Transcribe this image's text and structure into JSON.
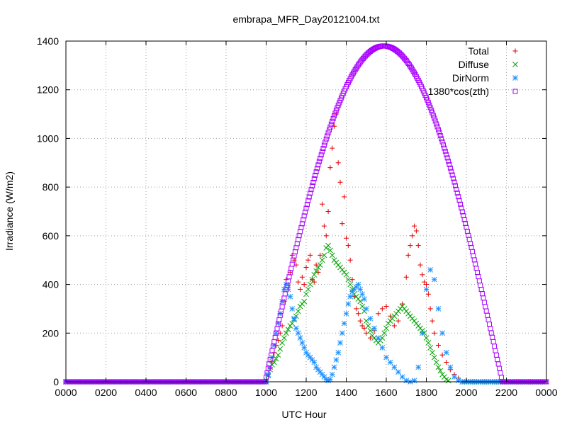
{
  "chart_data": {
    "type": "scatter",
    "title": "embrapa_MFR_Day20121004.txt",
    "xlabel": "UTC Hour",
    "ylabel": "Irradiance (W/m2)",
    "xlim": [
      0,
      24
    ],
    "ylim": [
      0,
      1400
    ],
    "x_ticks": [
      0,
      2,
      4,
      6,
      8,
      10,
      12,
      14,
      16,
      18,
      20,
      22,
      24
    ],
    "x_tick_labels": [
      "0000",
      "0200",
      "0400",
      "0600",
      "0800",
      "1000",
      "1200",
      "1400",
      "1600",
      "1800",
      "2000",
      "2200",
      "0000"
    ],
    "y_ticks": [
      0,
      200,
      400,
      600,
      800,
      1000,
      1200,
      1400
    ],
    "y_tick_labels": [
      "0",
      "200",
      "400",
      "600",
      "800",
      "1000",
      "1200",
      "1400"
    ],
    "grid": true,
    "legend_position": "top-right",
    "series": [
      {
        "name": "Total",
        "color": "#e00000",
        "marker": "plus",
        "points": [
          [
            10.0,
            5
          ],
          [
            10.1,
            30
          ],
          [
            10.2,
            55
          ],
          [
            10.3,
            85
          ],
          [
            10.4,
            120
          ],
          [
            10.5,
            150
          ],
          [
            10.6,
            170
          ],
          [
            10.7,
            200
          ],
          [
            10.8,
            230
          ],
          [
            10.9,
            330
          ],
          [
            11.0,
            420
          ],
          [
            11.1,
            395
          ],
          [
            11.2,
            450
          ],
          [
            11.3,
            520
          ],
          [
            11.4,
            500
          ],
          [
            11.5,
            480
          ],
          [
            11.6,
            410
          ],
          [
            11.7,
            380
          ],
          [
            11.8,
            430
          ],
          [
            11.9,
            400
          ],
          [
            12.0,
            470
          ],
          [
            12.1,
            500
          ],
          [
            12.2,
            520
          ],
          [
            12.3,
            420
          ],
          [
            12.4,
            410
          ],
          [
            12.5,
            480
          ],
          [
            12.6,
            450
          ],
          [
            12.7,
            520
          ],
          [
            12.8,
            730
          ],
          [
            12.9,
            640
          ],
          [
            13.0,
            600
          ],
          [
            13.1,
            700
          ],
          [
            13.2,
            880
          ],
          [
            13.3,
            960
          ],
          [
            13.4,
            1050
          ],
          [
            13.5,
            1100
          ],
          [
            13.6,
            900
          ],
          [
            13.7,
            820
          ],
          [
            13.8,
            650
          ],
          [
            13.9,
            760
          ],
          [
            14.0,
            590
          ],
          [
            14.1,
            560
          ],
          [
            14.2,
            500
          ],
          [
            14.3,
            420
          ],
          [
            14.4,
            350
          ],
          [
            14.5,
            300
          ],
          [
            14.6,
            280
          ],
          [
            14.7,
            250
          ],
          [
            14.8,
            230
          ],
          [
            14.9,
            220
          ],
          [
            15.0,
            200
          ],
          [
            15.2,
            180
          ],
          [
            15.4,
            210
          ],
          [
            15.6,
            280
          ],
          [
            15.8,
            300
          ],
          [
            16.0,
            310
          ],
          [
            16.2,
            270
          ],
          [
            16.4,
            230
          ],
          [
            16.6,
            250
          ],
          [
            16.8,
            320
          ],
          [
            17.0,
            430
          ],
          [
            17.1,
            520
          ],
          [
            17.2,
            560
          ],
          [
            17.3,
            600
          ],
          [
            17.4,
            640
          ],
          [
            17.5,
            620
          ],
          [
            17.6,
            560
          ],
          [
            17.7,
            480
          ],
          [
            17.8,
            440
          ],
          [
            17.9,
            410
          ],
          [
            18.0,
            400
          ],
          [
            18.1,
            360
          ],
          [
            18.2,
            300
          ],
          [
            18.3,
            250
          ],
          [
            18.4,
            200
          ],
          [
            18.6,
            150
          ],
          [
            18.8,
            110
          ],
          [
            19.0,
            80
          ],
          [
            19.2,
            50
          ],
          [
            19.4,
            30
          ],
          [
            19.6,
            15
          ]
        ]
      },
      {
        "name": "Diffuse",
        "color": "#00a000",
        "marker": "cross",
        "points": [
          [
            10.0,
            5
          ],
          [
            10.1,
            25
          ],
          [
            10.2,
            50
          ],
          [
            10.3,
            70
          ],
          [
            10.4,
            80
          ],
          [
            10.5,
            95
          ],
          [
            10.6,
            110
          ],
          [
            10.7,
            135
          ],
          [
            10.8,
            160
          ],
          [
            10.9,
            180
          ],
          [
            11.0,
            200
          ],
          [
            11.1,
            215
          ],
          [
            11.2,
            230
          ],
          [
            11.3,
            240
          ],
          [
            11.4,
            255
          ],
          [
            11.5,
            270
          ],
          [
            11.6,
            290
          ],
          [
            11.7,
            310
          ],
          [
            11.8,
            320
          ],
          [
            11.9,
            330
          ],
          [
            12.0,
            360
          ],
          [
            12.1,
            380
          ],
          [
            12.2,
            400
          ],
          [
            12.3,
            420
          ],
          [
            12.4,
            440
          ],
          [
            12.5,
            455
          ],
          [
            12.6,
            470
          ],
          [
            12.7,
            480
          ],
          [
            12.8,
            500
          ],
          [
            12.9,
            520
          ],
          [
            13.0,
            550
          ],
          [
            13.1,
            560
          ],
          [
            13.2,
            540
          ],
          [
            13.3,
            520
          ],
          [
            13.4,
            500
          ],
          [
            13.5,
            490
          ],
          [
            13.6,
            480
          ],
          [
            13.7,
            470
          ],
          [
            13.8,
            460
          ],
          [
            13.9,
            450
          ],
          [
            14.0,
            440
          ],
          [
            14.1,
            420
          ],
          [
            14.2,
            400
          ],
          [
            14.3,
            380
          ],
          [
            14.4,
            360
          ],
          [
            14.5,
            350
          ],
          [
            14.6,
            340
          ],
          [
            14.7,
            330
          ],
          [
            14.8,
            310
          ],
          [
            14.9,
            290
          ],
          [
            15.0,
            250
          ],
          [
            15.1,
            230
          ],
          [
            15.2,
            210
          ],
          [
            15.3,
            190
          ],
          [
            15.4,
            180
          ],
          [
            15.5,
            170
          ],
          [
            15.6,
            160
          ],
          [
            15.7,
            170
          ],
          [
            15.8,
            180
          ],
          [
            15.9,
            200
          ],
          [
            16.0,
            220
          ],
          [
            16.1,
            240
          ],
          [
            16.2,
            250
          ],
          [
            16.3,
            260
          ],
          [
            16.4,
            270
          ],
          [
            16.5,
            280
          ],
          [
            16.6,
            290
          ],
          [
            16.7,
            300
          ],
          [
            16.8,
            310
          ],
          [
            16.9,
            300
          ],
          [
            17.0,
            290
          ],
          [
            17.1,
            280
          ],
          [
            17.2,
            270
          ],
          [
            17.3,
            260
          ],
          [
            17.4,
            250
          ],
          [
            17.5,
            240
          ],
          [
            17.6,
            230
          ],
          [
            17.7,
            220
          ],
          [
            17.8,
            210
          ],
          [
            17.9,
            200
          ],
          [
            18.0,
            180
          ],
          [
            18.1,
            160
          ],
          [
            18.2,
            140
          ],
          [
            18.3,
            120
          ],
          [
            18.4,
            100
          ],
          [
            18.5,
            80
          ],
          [
            18.6,
            60
          ],
          [
            18.7,
            45
          ],
          [
            18.8,
            30
          ],
          [
            18.9,
            20
          ],
          [
            19.0,
            10
          ],
          [
            19.1,
            5
          ]
        ]
      },
      {
        "name": "DirNorm",
        "color": "#1e90ff",
        "marker": "star",
        "points": [
          [
            10.0,
            5
          ],
          [
            10.1,
            30
          ],
          [
            10.2,
            60
          ],
          [
            10.3,
            100
          ],
          [
            10.4,
            150
          ],
          [
            10.5,
            200
          ],
          [
            10.6,
            240
          ],
          [
            10.7,
            280
          ],
          [
            10.8,
            330
          ],
          [
            10.9,
            380
          ],
          [
            11.0,
            400
          ],
          [
            11.1,
            380
          ],
          [
            11.2,
            350
          ],
          [
            11.3,
            300
          ],
          [
            11.4,
            260
          ],
          [
            11.5,
            220
          ],
          [
            11.6,
            200
          ],
          [
            11.7,
            180
          ],
          [
            11.8,
            160
          ],
          [
            11.9,
            140
          ],
          [
            12.0,
            120
          ],
          [
            12.1,
            110
          ],
          [
            12.2,
            100
          ],
          [
            12.3,
            90
          ],
          [
            12.4,
            80
          ],
          [
            12.5,
            60
          ],
          [
            12.6,
            50
          ],
          [
            12.7,
            40
          ],
          [
            12.8,
            30
          ],
          [
            12.9,
            20
          ],
          [
            13.0,
            10
          ],
          [
            13.1,
            5
          ],
          [
            13.2,
            10
          ],
          [
            13.3,
            30
          ],
          [
            13.4,
            60
          ],
          [
            13.5,
            90
          ],
          [
            13.6,
            120
          ],
          [
            13.7,
            160
          ],
          [
            13.8,
            200
          ],
          [
            13.9,
            240
          ],
          [
            14.0,
            280
          ],
          [
            14.1,
            320
          ],
          [
            14.2,
            350
          ],
          [
            14.3,
            370
          ],
          [
            14.4,
            380
          ],
          [
            14.5,
            390
          ],
          [
            14.6,
            400
          ],
          [
            14.7,
            380
          ],
          [
            14.8,
            360
          ],
          [
            14.9,
            340
          ],
          [
            15.0,
            300
          ],
          [
            15.2,
            260
          ],
          [
            15.4,
            220
          ],
          [
            15.6,
            180
          ],
          [
            15.8,
            140
          ],
          [
            16.0,
            100
          ],
          [
            16.2,
            80
          ],
          [
            16.4,
            60
          ],
          [
            16.6,
            40
          ],
          [
            16.8,
            20
          ],
          [
            17.0,
            5
          ],
          [
            17.2,
            0
          ],
          [
            17.4,
            5
          ],
          [
            17.6,
            60
          ],
          [
            17.8,
            200
          ],
          [
            18.0,
            380
          ],
          [
            18.2,
            460
          ],
          [
            18.4,
            420
          ],
          [
            18.6,
            300
          ],
          [
            18.8,
            200
          ],
          [
            19.0,
            120
          ],
          [
            19.2,
            60
          ],
          [
            19.4,
            20
          ],
          [
            19.6,
            5
          ]
        ]
      },
      {
        "name": "1380*cos(zth)",
        "color": "#aa00ff",
        "marker": "square",
        "peak": 1380,
        "peak_hour": 15.88,
        "sunrise_hour": 9.95,
        "sunset_hour": 21.8
      }
    ]
  }
}
